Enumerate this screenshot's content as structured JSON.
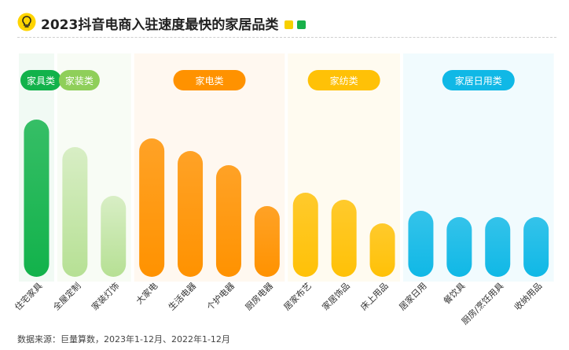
{
  "header": {
    "title": "2023抖音电商入驻速度最快的家居品类",
    "legend_colors": [
      "#f7d000",
      "#18b04a"
    ]
  },
  "source": "数据来源：巨量算数，2023年1-12月、2022年1-12月",
  "colors": {
    "home_furniture": "#12b24b",
    "decoration": "#8fcf5a",
    "appliance": "#ff9200",
    "textile": "#ffc107",
    "daily": "#10b8e6"
  },
  "chart_data": {
    "type": "bar",
    "title": "2023抖音电商入驻速度最快的家居品类",
    "groups": [
      {
        "name": "家具类",
        "color": "#12b24b",
        "categories": [
          "住宅家具"
        ]
      },
      {
        "name": "家装类",
        "color": "#8fcf5a",
        "categories": [
          "全屋定制",
          "家装灯饰"
        ]
      },
      {
        "name": "家电类",
        "color": "#ff9200",
        "categories": [
          "大家电",
          "生活电器",
          "个护电器",
          "厨房电器"
        ]
      },
      {
        "name": "家纺类",
        "color": "#ffc107",
        "categories": [
          "居家布艺",
          "家居饰品",
          "床上用品"
        ]
      },
      {
        "name": "家居日用类",
        "color": "#10b8e6",
        "categories": [
          "居家日用",
          "餐饮具",
          "厨房/烹饪用具",
          "收纳用品"
        ]
      }
    ],
    "categories": [
      "住宅家具",
      "全屋定制",
      "家装灯饰",
      "大家电",
      "生活电器",
      "个护电器",
      "厨房电器",
      "居家布艺",
      "家居饰品",
      "床上用品",
      "居家日用",
      "餐饮具",
      "厨房/烹饪用具",
      "收纳用品"
    ],
    "values": [
      200,
      165,
      103,
      176,
      160,
      142,
      90,
      107,
      98,
      68,
      84,
      76,
      76,
      76
    ],
    "ylim": [
      0,
      220
    ],
    "grid": false,
    "legend": "top"
  }
}
